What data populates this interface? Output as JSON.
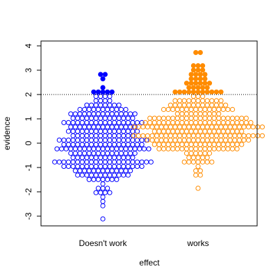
{
  "chart_data": {
    "type": "scatter",
    "subtype": "beeswarm",
    "title": "",
    "xlabel": "effect",
    "ylabel": "evidence",
    "categories": [
      "Doesn't work",
      "works"
    ],
    "ylim": [
      -3.4,
      4.2
    ],
    "yticks": [
      -3,
      -2,
      -1,
      0,
      1,
      2,
      3,
      4
    ],
    "threshold": {
      "value": 2,
      "style": "dotted",
      "color": "#000000"
    },
    "colors": {
      "Doesn't work": "#0000ff",
      "works": "#ff8c00"
    },
    "marker_rule": "points above the threshold are filled; points below are open circles",
    "series": [
      {
        "name": "Doesn't work",
        "n": 300,
        "y_range": [
          -3.1,
          2.9
        ],
        "points_above_threshold": [
          2.05,
          2.1,
          2.15,
          2.2,
          2.05,
          2.15,
          2.7,
          2.85,
          2.9
        ]
      },
      {
        "name": "works",
        "n": 300,
        "y_range": [
          -1.9,
          3.8
        ],
        "points_above_threshold": [
          2.05,
          2.05,
          2.05,
          2.1,
          2.1,
          2.1,
          2.1,
          2.15,
          2.15,
          2.15,
          2.15,
          2.2,
          2.2,
          2.25,
          2.3,
          2.35,
          2.4,
          2.45,
          2.5,
          2.5,
          2.55,
          2.55,
          2.6,
          2.6,
          2.65,
          2.7,
          2.75,
          2.8,
          2.85,
          2.9,
          2.95,
          3.0,
          3.05,
          3.1,
          3.15,
          3.2,
          3.7,
          3.8
        ]
      }
    ]
  }
}
